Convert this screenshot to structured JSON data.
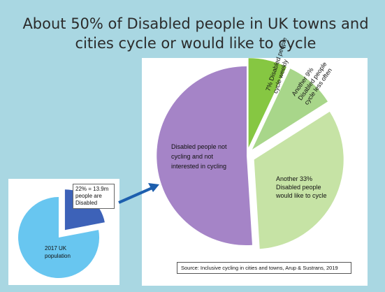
{
  "title_lines": [
    "About 50% of Disabled people in UK towns and",
    "cities cycle or would like to cycle"
  ],
  "colors": {
    "background": "#a9d7e2",
    "purple": "#a584c7",
    "green_dark": "#86c742",
    "green_mid": "#a8d68a",
    "green_light": "#c6e3a5",
    "blue_light": "#68c6f0",
    "blue_dark": "#3d62b8",
    "arrow": "#1d5fae"
  },
  "source": "Source: Inclusive cycling in cities and towns, Arup & Sustrans, 2019",
  "chart_data": [
    {
      "type": "pie",
      "slices": [
        {
          "label": "7% Disabled people cycle weekly",
          "value": 7
        },
        {
          "label": "Another 9% Disabled people cycle less often",
          "value": 9
        },
        {
          "label": "Another 33% Disabled people would like to cycle",
          "value": 33
        },
        {
          "label": "Disabled people not cycling and not interested in cycling",
          "value": 51
        }
      ]
    },
    {
      "type": "pie",
      "slices": [
        {
          "label": "22% = 13.9m people are Disabled",
          "value": 22
        },
        {
          "label": "2017 UK population",
          "value": 78
        }
      ]
    }
  ]
}
